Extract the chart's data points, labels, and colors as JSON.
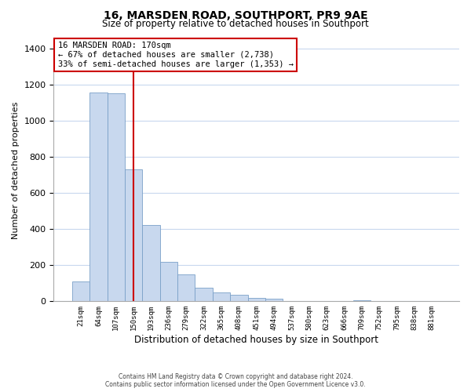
{
  "title": "16, MARSDEN ROAD, SOUTHPORT, PR9 9AE",
  "subtitle": "Size of property relative to detached houses in Southport",
  "xlabel": "Distribution of detached houses by size in Southport",
  "ylabel": "Number of detached properties",
  "bar_labels": [
    "21sqm",
    "64sqm",
    "107sqm",
    "150sqm",
    "193sqm",
    "236sqm",
    "279sqm",
    "322sqm",
    "365sqm",
    "408sqm",
    "451sqm",
    "494sqm",
    "537sqm",
    "580sqm",
    "623sqm",
    "666sqm",
    "709sqm",
    "752sqm",
    "795sqm",
    "838sqm",
    "881sqm"
  ],
  "bar_values": [
    110,
    1155,
    1150,
    730,
    420,
    220,
    150,
    75,
    50,
    35,
    20,
    15,
    0,
    0,
    0,
    0,
    5,
    0,
    0,
    0,
    0
  ],
  "bar_color": "#c8d8ee",
  "bar_edge_color": "#7aa0c8",
  "vline_x": 3.0,
  "vline_color": "#cc0000",
  "ylim": [
    0,
    1450
  ],
  "yticks": [
    0,
    200,
    400,
    600,
    800,
    1000,
    1200,
    1400
  ],
  "annotation_title": "16 MARSDEN ROAD: 170sqm",
  "annotation_line1": "← 67% of detached houses are smaller (2,738)",
  "annotation_line2": "33% of semi-detached houses are larger (1,353) →",
  "annotation_box_color": "#ffffff",
  "annotation_box_edge": "#cc0000",
  "footnote1": "Contains HM Land Registry data © Crown copyright and database right 2024.",
  "footnote2": "Contains public sector information licensed under the Open Government Licence v3.0.",
  "bg_color": "#ffffff",
  "grid_color": "#c8d8ee"
}
